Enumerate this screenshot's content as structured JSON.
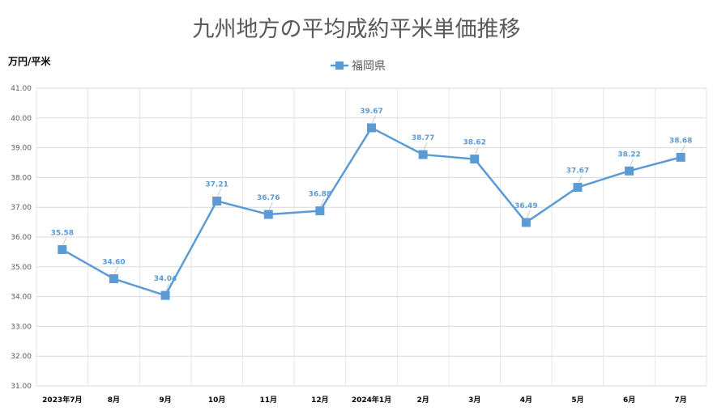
{
  "chart_data": {
    "type": "line",
    "title": "九州地方の平均成約平米単価推移",
    "ylabel": "万円/平米",
    "xlabel": "",
    "categories": [
      "2023年7月",
      "8月",
      "9月",
      "10月",
      "11月",
      "12月",
      "2024年1月",
      "2月",
      "3月",
      "4月",
      "5月",
      "6月",
      "7月"
    ],
    "series": [
      {
        "name": "福岡県",
        "values": [
          35.58,
          34.6,
          34.04,
          37.21,
          36.76,
          36.88,
          39.67,
          38.77,
          38.62,
          36.49,
          37.67,
          38.22,
          38.68
        ],
        "labels": [
          "35.58",
          "34.60",
          "34.04",
          "37.21",
          "36.76",
          "36.88",
          "39.67",
          "38.77",
          "38.62",
          "36.49",
          "37.67",
          "38.22",
          "38.68"
        ],
        "color": "#5b9bd5",
        "marker": "square"
      }
    ],
    "ylim": [
      31,
      41
    ],
    "yticks": [
      "31.00",
      "32.00",
      "33.00",
      "34.00",
      "35.00",
      "36.00",
      "37.00",
      "38.00",
      "39.00",
      "40.00",
      "41.00"
    ],
    "grid": true,
    "legend": "top-center"
  }
}
